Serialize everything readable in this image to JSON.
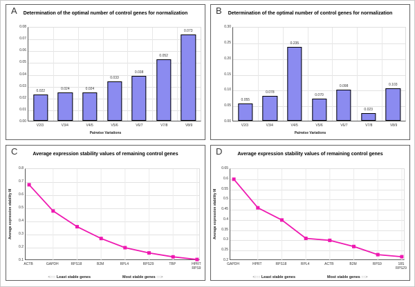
{
  "figure": {
    "background": "#ffffff",
    "border_color": "#c9c9c9",
    "panel_border_color": "#5f5f5f"
  },
  "colors": {
    "bar_fill": "#8b8bf0",
    "bar_border": "#000000",
    "line_series": "#ee18b0",
    "gridline": "#e2e2e2",
    "axis": "#555555"
  },
  "chart_data": [
    {
      "panel": "A",
      "type": "bar",
      "title": "Determination of the optimal number of control genes for normalization",
      "xlabel": "Pairwise Variations",
      "categories": [
        "V2/3",
        "V3/4",
        "V4/5",
        "V5/6",
        "V6/7",
        "V7/8",
        "V8/9"
      ],
      "values": [
        0.022,
        0.024,
        0.024,
        0.033,
        0.038,
        0.052,
        0.073
      ],
      "data_labels": [
        "0.022",
        "0.024",
        "0.024",
        "0.033",
        "0.038",
        "0.052",
        "0.073"
      ],
      "ylim": [
        0,
        0.08
      ],
      "yticks": [
        "0.08",
        "0.07",
        "0.06",
        "0.05",
        "0.04",
        "0.03",
        "0.02",
        "0.01",
        "0.00"
      ],
      "grid": "on",
      "legend": "none"
    },
    {
      "panel": "B",
      "type": "bar",
      "title": "Determination of the optimal number of control genes for normalization",
      "xlabel": "Pairwise Variations",
      "categories": [
        "V2/3",
        "V3/4",
        "V4/5",
        "V5/6",
        "V6/7",
        "V7/8",
        "V8/9"
      ],
      "values": [
        0.055,
        0.078,
        0.235,
        0.07,
        0.098,
        0.023,
        0.103
      ],
      "data_labels": [
        "0.055",
        "0.078",
        "0.235",
        "0.070",
        "0.098",
        "0.023",
        "0.103"
      ],
      "ylim": [
        0,
        0.3
      ],
      "yticks": [
        "0.30",
        "0.25",
        "0.20",
        "0.15",
        "0.10",
        "0.05",
        "0.00"
      ],
      "grid": "on",
      "legend": "none"
    },
    {
      "panel": "C",
      "type": "line",
      "title": "Average expression stability values of remaining control genes",
      "ylabel": "Average expression stability M",
      "categories": [
        "ACTB",
        "GAPDH",
        "RPS18",
        "B2M",
        "RPL4",
        "RPS29",
        "TBP",
        "HPRT\nRPS9"
      ],
      "values": [
        0.68,
        0.48,
        0.36,
        0.27,
        0.2,
        0.16,
        0.13,
        0.11
      ],
      "ylim": [
        0.1,
        0.8
      ],
      "yticks": [
        "0.8",
        "0.7",
        "0.6",
        "0.5",
        "0.4",
        "0.3",
        "0.2",
        "0.1"
      ],
      "footer": {
        "arrow_left": "<:::::",
        "least": "Least stable genes",
        "most": "Most stable genes",
        "arrow_right": "::::>"
      },
      "grid": "on",
      "legend": "none"
    },
    {
      "panel": "D",
      "type": "line",
      "title": "Average expression stability values of remaining control genes",
      "ylabel": "Average expression stability M",
      "categories": [
        "GAPDH",
        "HPRT",
        "RPS18",
        "RPL4",
        "ACTB",
        "B2M",
        "RPS9",
        "18S\nRPS29"
      ],
      "values": [
        0.6,
        0.46,
        0.4,
        0.31,
        0.3,
        0.27,
        0.23,
        0.22
      ],
      "ylim": [
        0.2,
        0.65
      ],
      "yticks": [
        "0.65",
        "0.6",
        "0.55",
        "0.5",
        "0.45",
        "0.4",
        "0.35",
        "0.3",
        "0.25",
        "0.2"
      ],
      "footer": {
        "arrow_left": "<:::::",
        "least": "Least stable genes",
        "most": "Most stable genes",
        "arrow_right": "::::>"
      },
      "grid": "on",
      "legend": "none"
    }
  ]
}
